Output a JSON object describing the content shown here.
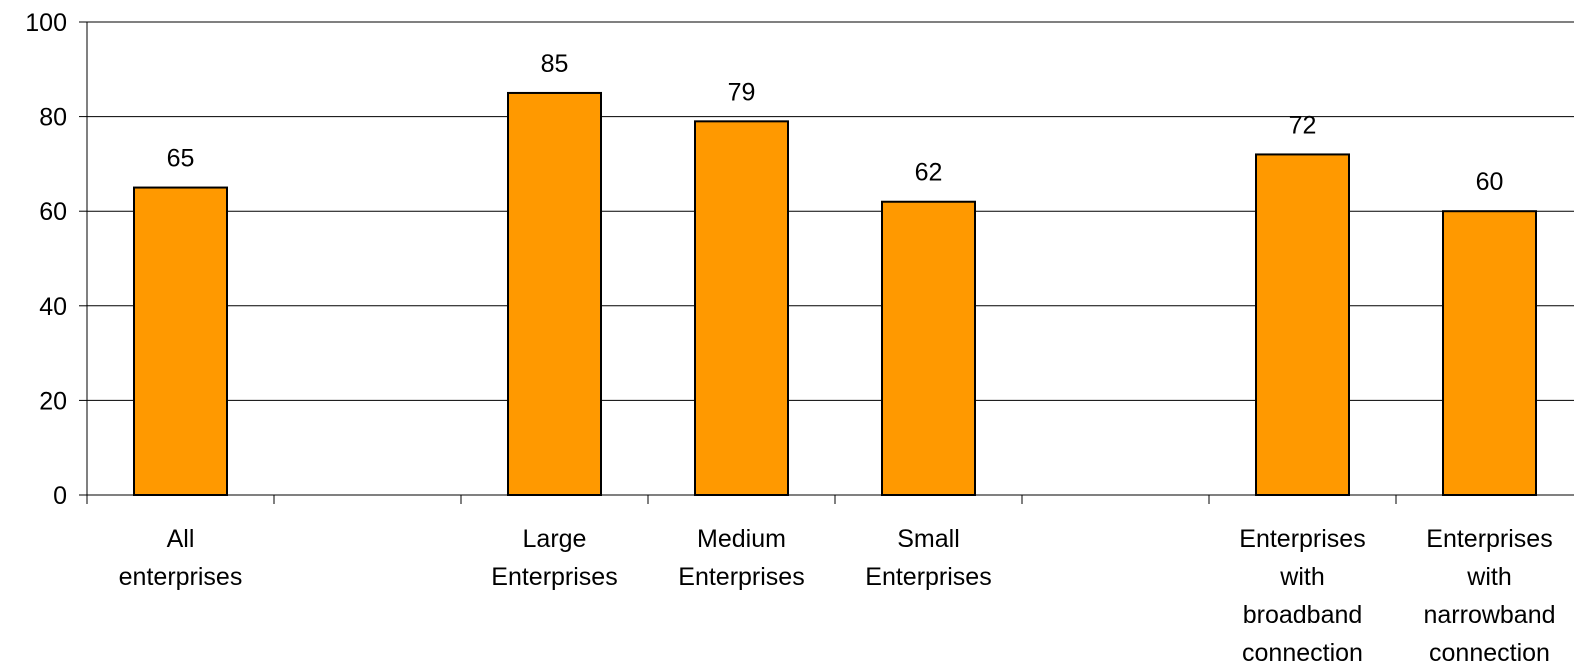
{
  "chart_data": {
    "type": "bar",
    "title": "",
    "xlabel": "",
    "ylabel": "",
    "ylim": [
      0,
      100
    ],
    "yticks": [
      0,
      20,
      40,
      60,
      80,
      100
    ],
    "grid": true,
    "bar_color": "#FF9900",
    "categories": [
      {
        "lines": [
          "All",
          "enterprises"
        ],
        "value": 65
      },
      {
        "lines": [],
        "value": null
      },
      {
        "lines": [
          "Large",
          "Enterprises"
        ],
        "value": 85
      },
      {
        "lines": [
          "Medium",
          "Enterprises"
        ],
        "value": 79
      },
      {
        "lines": [
          "Small",
          "Enterprises"
        ],
        "value": 62
      },
      {
        "lines": [],
        "value": null
      },
      {
        "lines": [
          "Enterprises",
          "with",
          "broadband",
          "connection"
        ],
        "value": 72
      },
      {
        "lines": [
          "Enterprises",
          "with",
          "narrowband",
          "connection"
        ],
        "value": 60
      }
    ]
  }
}
